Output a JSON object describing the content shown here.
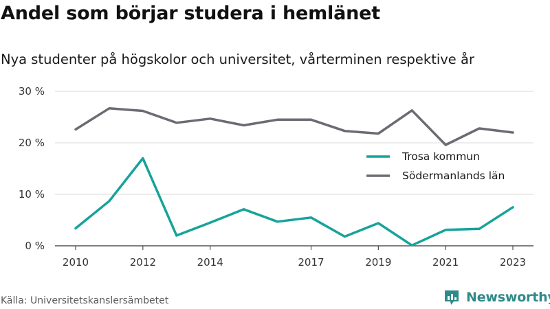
{
  "title": "Andel som börjar studera i hemlänet",
  "subtitle": "Nya studenter på högskolor och universitet, vårterminen respektive år",
  "source": "Källa: Universitetskanslersämbetet",
  "brand": {
    "name": "Newsworthy",
    "icon": "newsworthy-logo-icon",
    "color": "#2f8a8a"
  },
  "chart_data": {
    "type": "line",
    "x": [
      2010,
      2011,
      2012,
      2013,
      2014,
      2015,
      2016,
      2017,
      2018,
      2019,
      2020,
      2021,
      2022,
      2023
    ],
    "x_tick_labels": [
      "2010",
      "2012",
      "2014",
      "2017",
      "2019",
      "2021",
      "2023"
    ],
    "x_tick_values": [
      2010,
      2012,
      2014,
      2017,
      2019,
      2021,
      2023
    ],
    "xlim": [
      2010,
      2023
    ],
    "ylim": [
      0,
      30
    ],
    "y_ticks": [
      0,
      10,
      20,
      30
    ],
    "y_tick_labels": [
      "0 %",
      "10 %",
      "20 %",
      "30 %"
    ],
    "grid": true,
    "legend_position": "right",
    "series": [
      {
        "name": "Trosa kommun",
        "color": "#16a39a",
        "values": [
          3.4,
          8.7,
          17.0,
          2.0,
          4.5,
          7.1,
          4.7,
          5.5,
          1.8,
          4.4,
          0.1,
          3.1,
          3.3,
          7.5
        ]
      },
      {
        "name": "Södermanlands län",
        "color": "#6c6a72",
        "values": [
          22.6,
          26.7,
          26.2,
          23.9,
          24.7,
          23.4,
          24.5,
          24.5,
          22.3,
          21.8,
          26.3,
          19.6,
          22.8,
          22.0
        ]
      }
    ]
  }
}
